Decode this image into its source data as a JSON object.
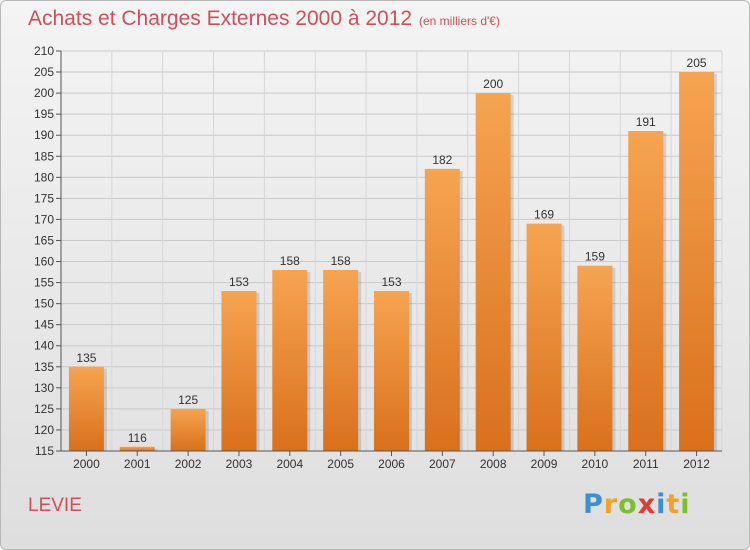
{
  "header": {
    "title": "Achats et Charges Externes 2000 à 2012",
    "subtitle": "(en milliers d'€)"
  },
  "footer": {
    "commune": "LEVIE",
    "logo": {
      "letters": [
        "P",
        "r",
        "o",
        "x",
        "i",
        "t",
        "i"
      ],
      "colors": [
        "#3a8fd6",
        "#f2a323",
        "#7bbf2d",
        "#e33a2f",
        "#3a8fd6",
        "#f2a323",
        "#7bbf2d"
      ]
    }
  },
  "chart_data": {
    "type": "bar",
    "title": "Achats et Charges Externes 2000 à 2012",
    "subtitle": "(en milliers d'€)",
    "categories": [
      "2000",
      "2001",
      "2002",
      "2003",
      "2004",
      "2005",
      "2006",
      "2007",
      "2008",
      "2009",
      "2010",
      "2011",
      "2012"
    ],
    "values": [
      135,
      116,
      125,
      153,
      158,
      158,
      153,
      182,
      200,
      169,
      159,
      191,
      205
    ],
    "ylim": [
      115,
      210
    ],
    "ytick_step": 5,
    "grid": true,
    "bar_color_top": "#f6a451",
    "bar_color_bottom": "#d9701c",
    "xlabel": "",
    "ylabel": ""
  }
}
